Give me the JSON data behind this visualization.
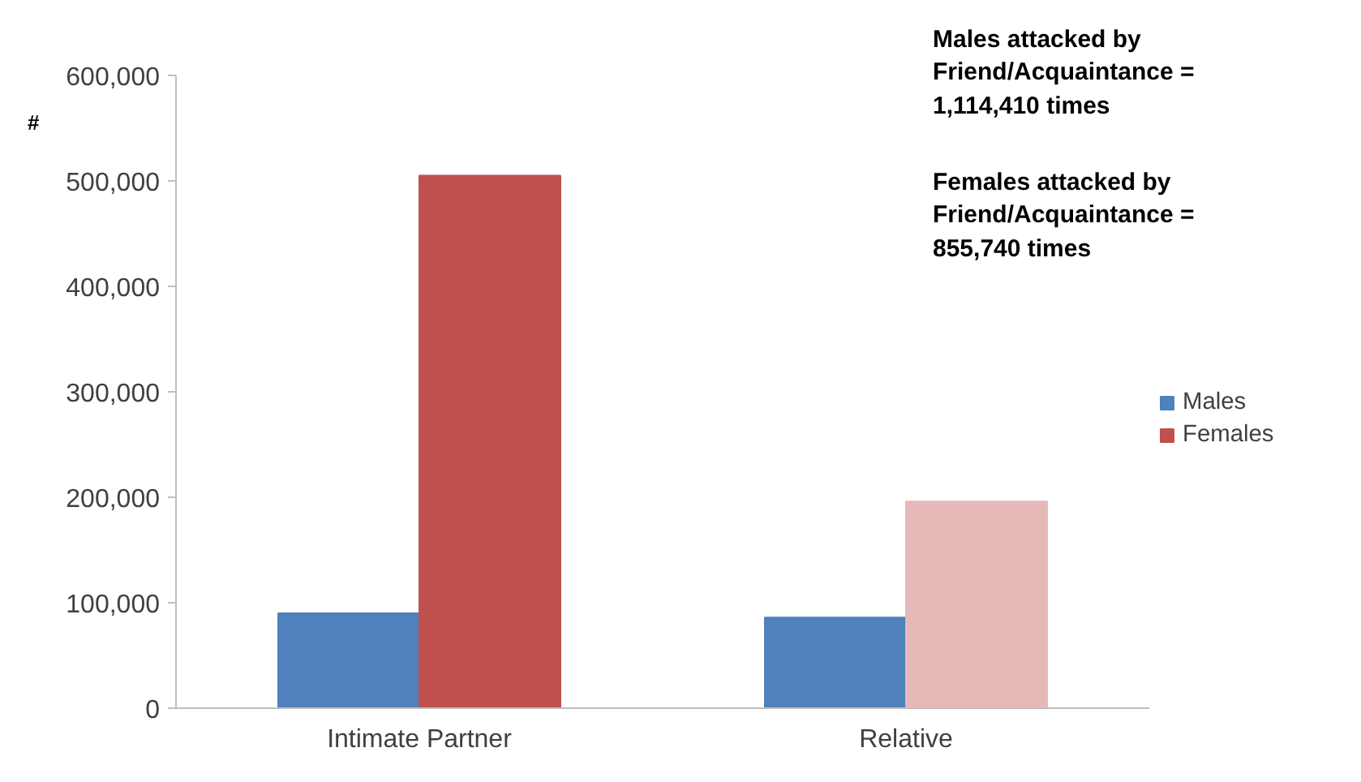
{
  "chart_data": {
    "type": "bar",
    "categories": [
      "Intimate Partner",
      "Relative"
    ],
    "series": [
      {
        "name": "Males",
        "color": "#4f81bd",
        "values": [
          90000,
          86000
        ]
      },
      {
        "name": "Females",
        "color": "#c0504d",
        "colors": [
          "#c0504d",
          "#e6b9b8"
        ],
        "values": [
          505000,
          196000
        ]
      }
    ],
    "ylabel": "#",
    "ylim": [
      0,
      600000
    ],
    "yticks": [
      {
        "value": 0,
        "label": "0"
      },
      {
        "value": 100000,
        "label": "100,000"
      },
      {
        "value": 200000,
        "label": "200,000"
      },
      {
        "value": 300000,
        "label": "300,000"
      },
      {
        "value": 400000,
        "label": "400,000"
      },
      {
        "value": 500000,
        "label": "500,000"
      },
      {
        "value": 600000,
        "label": "600,000"
      }
    ],
    "annotations": [
      "Males attacked by\nFriend/Acquaintance =\n1,114,410 times",
      "Females attacked by\nFriend/Acquaintance =\n855,740 times"
    ],
    "legend": "right",
    "grid": false
  }
}
